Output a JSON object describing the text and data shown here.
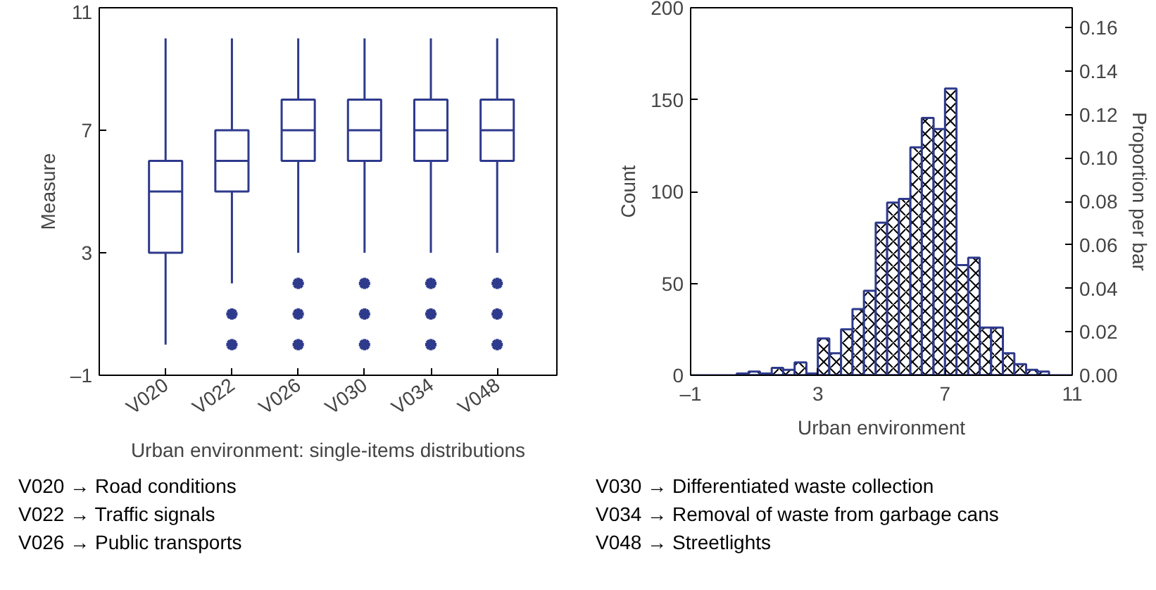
{
  "chart_data": [
    {
      "type": "box",
      "xlabel": "Urban environment: single-items distributions",
      "ylabel": "Measure",
      "categories": [
        "V020",
        "V022",
        "V026",
        "V030",
        "V034",
        "V048"
      ],
      "color": "#2e3a8c",
      "marker": "star",
      "ylim": [
        -1,
        11
      ],
      "yticks": [
        {
          "value": -1,
          "label": "–1"
        },
        3,
        7,
        11
      ],
      "grid": false,
      "boxes": [
        {
          "low": 0,
          "q1": 3,
          "median": 5,
          "q3": 6,
          "high": 10
        },
        {
          "low": 2,
          "q1": 5,
          "median": 6,
          "q3": 7,
          "high": 10,
          "outliers": [
            1,
            0
          ]
        },
        {
          "low": 3,
          "q1": 6,
          "median": 7,
          "q3": 8,
          "high": 10,
          "outliers": [
            2,
            1,
            0
          ]
        },
        {
          "low": 3,
          "q1": 6,
          "median": 7,
          "q3": 8,
          "high": 10,
          "outliers": [
            2,
            1,
            0
          ]
        },
        {
          "low": 3,
          "q1": 6,
          "median": 7,
          "q3": 8,
          "high": 10,
          "outliers": [
            2,
            1,
            0
          ]
        },
        {
          "low": 3,
          "q1": 6,
          "median": 7,
          "q3": 8,
          "high": 10,
          "outliers": [
            2,
            1,
            0
          ]
        }
      ],
      "annotations": [
        "V020 → Road conditions",
        "V022 → Traffic signals",
        "V026 → Public transports"
      ]
    },
    {
      "type": "histogram",
      "xlabel": "Urban environment",
      "ylabel": "Count",
      "y2label": "Proportion per bar",
      "color": "#2e3a8c",
      "grid": false,
      "bins": [
        0.45,
        0.82,
        1.18,
        1.55,
        1.91,
        2.27,
        2.64,
        3.0,
        3.36,
        3.73,
        4.09,
        4.45,
        4.82,
        5.18,
        5.55,
        5.91,
        6.27,
        6.64,
        7.0,
        7.36,
        7.73,
        8.09,
        8.45,
        8.82,
        9.18,
        9.55,
        9.91,
        10.27
      ],
      "values": [
        1,
        2,
        1,
        4,
        3,
        7,
        1,
        20,
        12,
        25,
        36,
        46,
        83,
        94,
        96,
        124,
        140,
        134,
        156,
        60,
        64,
        26,
        26,
        12,
        6,
        3,
        2
      ],
      "xlim": [
        -1,
        11
      ],
      "xticks": [
        {
          "value": -1,
          "label": "–1"
        },
        3,
        7,
        11
      ],
      "ylim": [
        0,
        200
      ],
      "yticks": [
        0,
        50,
        100,
        150,
        200
      ],
      "y2lim": [
        0,
        0.1692
      ],
      "y2ticks": [
        {
          "value": 0,
          "label": "0.00"
        },
        {
          "value": 0.02,
          "label": "0.02"
        },
        {
          "value": 0.04,
          "label": "0.04"
        },
        {
          "value": 0.06,
          "label": "0.06"
        },
        {
          "value": 0.08,
          "label": "0.08"
        },
        {
          "value": 0.1,
          "label": "0.10"
        },
        {
          "value": 0.12,
          "label": "0.12"
        },
        {
          "value": 0.14,
          "label": "0.14"
        },
        {
          "value": 0.16,
          "label": "0.16"
        }
      ],
      "annotations": [
        "V030 → Differentiated waste collection",
        "V034 → Removal of waste from garbage cans",
        "V048 → Streetlights"
      ]
    }
  ]
}
